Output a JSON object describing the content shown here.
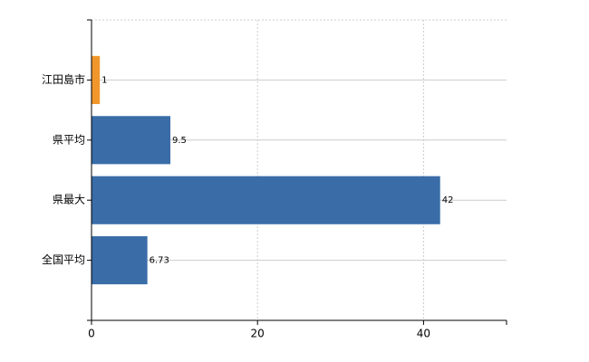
{
  "chart_data": {
    "type": "hbar",
    "categories": [
      "江田島市",
      "県平均",
      "県最大",
      "全国平均"
    ],
    "values": [
      1,
      9.5,
      42,
      6.73
    ],
    "colors": [
      "#f0962a",
      "#3a6da8",
      "#3a6da8",
      "#3a6da8"
    ],
    "xlim": [
      0,
      50
    ],
    "xticks": [
      0,
      20,
      40
    ],
    "grid": true
  }
}
